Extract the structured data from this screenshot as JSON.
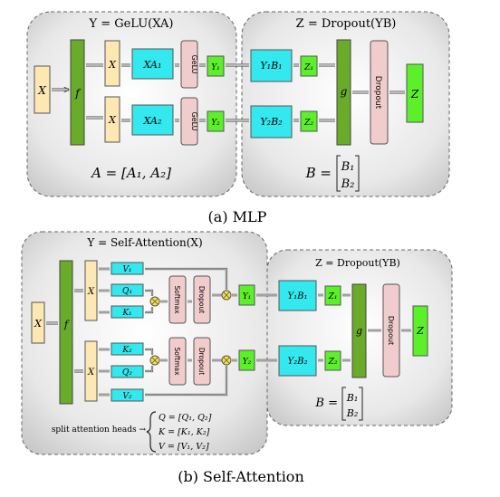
{
  "mlp": {
    "left_title": "Y = GeLU(XA)",
    "right_title": "Z = Dropout(YB)",
    "input": "X",
    "f": "f",
    "x_top": "X",
    "x_bot": "X",
    "xa1": "XA₁",
    "xa2": "XA₂",
    "gelu": "GeLU",
    "y1": "Y₁",
    "y2": "Y₂",
    "yb1": "Y₁B₁",
    "yb2": "Y₂B₂",
    "z1": "Z₁",
    "z2": "Z₂",
    "g": "g",
    "dropout": "Dropout",
    "z": "Z",
    "a_label": "A = [A₁, A₂]",
    "b_label": "B =",
    "b1": "B₁",
    "b2": "B₂",
    "caption": "(a) MLP"
  },
  "attn": {
    "left_title": "Y = Self-Attention(X)",
    "right_title": "Z = Dropout(YB)",
    "input": "X",
    "f": "f",
    "x_top": "X",
    "x_bot": "X",
    "v1": "V₁",
    "q1": "Q₁",
    "k1": "K₁",
    "k2": "K₂",
    "q2": "Q₂",
    "v2": "V₂",
    "softmax": "Softmax",
    "dropout": "Dropout",
    "y1": "Y₁",
    "y2": "Y₂",
    "yb1": "Y₁B₁",
    "yb2": "Y₂B₂",
    "z1": "Z₁",
    "z2": "Z₂",
    "g": "g",
    "z": "Z",
    "split_label": "split attention heads →",
    "q_eq": "Q = [Q₁, Q₂]",
    "k_eq": "K = [K₁, K₂]",
    "v_eq": "V = [V₁, V₂]",
    "b_label": "B =",
    "b1": "B₁",
    "b2": "B₂",
    "caption": "(b) Self-Attention"
  },
  "colors": {
    "yellow": "#fde7b3",
    "cyan": "#33e8ee",
    "pink": "#f1cccc",
    "lightgreen": "#5cf02a",
    "darkgreen": "#6aab2a",
    "panel": "#dcdcdc"
  }
}
